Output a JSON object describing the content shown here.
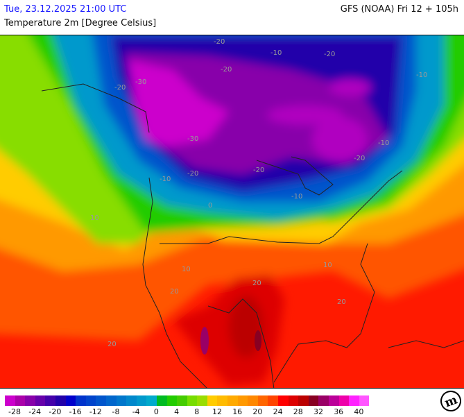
{
  "header": {
    "valid_time": "Tue, 23.12.2025 21:00 UTC",
    "model_run": "GFS (NOAA) Fri 12 + 105h",
    "parameter": "Temperature 2m [Degree Celsius]"
  },
  "legend": {
    "colors": [
      "#cc00cc",
      "#aa00aa",
      "#8800aa",
      "#6600aa",
      "#4400aa",
      "#2200aa",
      "#0000cc",
      "#0033cc",
      "#0044cc",
      "#0055cc",
      "#0066cc",
      "#0077cc",
      "#0088cc",
      "#0099cc",
      "#00aacc",
      "#00bb22",
      "#22cc00",
      "#44cc00",
      "#77dd00",
      "#99dd00",
      "#ffcc00",
      "#ffbb00",
      "#ffaa00",
      "#ff9900",
      "#ff8800",
      "#ff6600",
      "#ff4400",
      "#ff0000",
      "#dd0000",
      "#bb0000",
      "#880022",
      "#990066",
      "#bb0099",
      "#ee00aa",
      "#ff22ff",
      "#ff55ff"
    ],
    "labels": [
      "-28",
      "-24",
      "-20",
      "-16",
      "-12",
      "-8",
      "-4",
      "0",
      "4",
      "8",
      "12",
      "16",
      "20",
      "24",
      "28",
      "32",
      "36",
      "40"
    ]
  },
  "map": {
    "contour_labels": [
      "-20",
      "-20",
      "-10",
      "-20",
      "-30",
      "-20",
      "-30",
      "-20",
      "-10",
      "-20",
      "-10",
      "-10",
      "0",
      "10",
      "10",
      "10",
      "20",
      "20",
      "20",
      "20",
      "-20",
      "-10"
    ]
  },
  "logo": {
    "text": "m"
  }
}
